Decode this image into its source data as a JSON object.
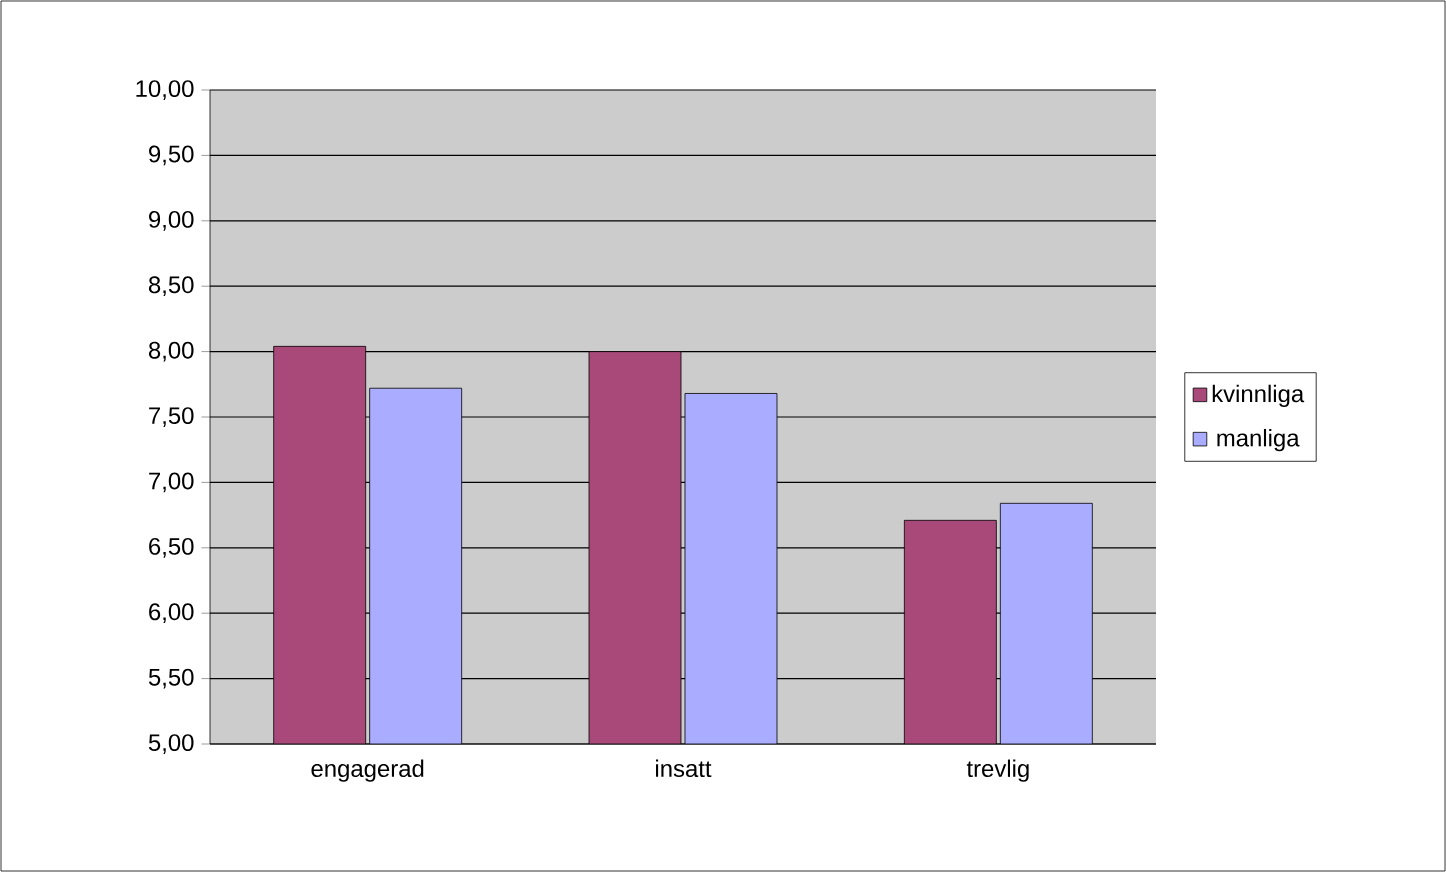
{
  "chart_data": {
    "type": "bar",
    "categories": [
      "engagerad",
      "insatt",
      "trevlig"
    ],
    "series": [
      {
        "name": "kvinnliga",
        "color": "#a8497a",
        "values": [
          8.04,
          8.0,
          6.71
        ]
      },
      {
        "name": "manliga",
        "color": "#a9acff",
        "values": [
          7.72,
          7.68,
          6.84
        ]
      }
    ],
    "ylim": [
      5,
      10
    ],
    "yticks": [
      {
        "value": 5,
        "label": "5,00"
      },
      {
        "value": 5.5,
        "label": "5,50"
      },
      {
        "value": 6,
        "label": "6,00"
      },
      {
        "value": 6.5,
        "label": "6,50"
      },
      {
        "value": 7,
        "label": "7,00"
      },
      {
        "value": 7.5,
        "label": "7,50"
      },
      {
        "value": 8,
        "label": "8,00"
      },
      {
        "value": 8.5,
        "label": "8,50"
      },
      {
        "value": 9,
        "label": "9,00"
      },
      {
        "value": 9.5,
        "label": "9,50"
      },
      {
        "value": 10,
        "label": "10,00"
      }
    ],
    "grid": "y",
    "legend": "right"
  }
}
